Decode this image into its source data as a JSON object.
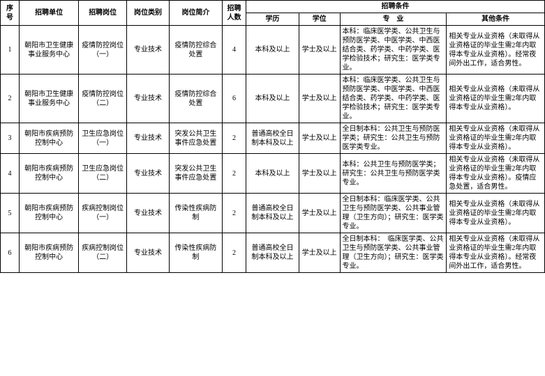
{
  "headers": {
    "seq": "序号",
    "unit": "招聘单位",
    "position": "招聘岗位",
    "category": "岗位类别",
    "intro": "岗位简介",
    "count": "招聘人数",
    "conditions": "招聘条件",
    "education": "学历",
    "degree": "学位",
    "major": "专　业",
    "other": "其他条件"
  },
  "rows": [
    {
      "seq": "1",
      "unit": "朝阳市卫生健康事业服务中心",
      "position": "疫情防控岗位（一）",
      "category": "专业技术",
      "intro": "疫情防控综合处置",
      "count": "4",
      "education": "本科及以上",
      "degree": "学士及以上",
      "major": "本科：临床医学类、公共卫生与预防医学类、中医学类、中西医结合类、药学类、中药学类、医学检验技术；研究生：医学类专业。",
      "other": "相关专业从业资格（未取得从业资格证的毕业生需2年内取得本专业从业资格）。经常夜间外出工作，适合男性。"
    },
    {
      "seq": "2",
      "unit": "朝阳市卫生健康事业服务中心",
      "position": "疫情防控岗位（二）",
      "category": "专业技术",
      "intro": "疫情防控综合处置",
      "count": "6",
      "education": "本科及以上",
      "degree": "学士及以上",
      "major": "本科：临床医学类、公共卫生与预防医学类、中医学类、中西医结合类、药学类、中药学类、医学检验技术；研究生：医学类专业。",
      "other": "相关专业从业资格（未取得从业资格证的毕业生需2年内取得本专业从业资格）。"
    },
    {
      "seq": "3",
      "unit": "朝阳市疾病预防控制中心",
      "position": "卫生应急岗位（一）",
      "category": "专业技术",
      "intro": "突发公共卫生事件应急处置",
      "count": "2",
      "education": "普通高校全日制本科及以上",
      "degree": "学士及以上",
      "major": "全日制本科：公共卫生与预防医学类；研究生：公共卫生与预防医学类专业。",
      "other": "相关专业从业资格（未取得从业资格证的毕业生需2年内取得本专业从业资格）。"
    },
    {
      "seq": "4",
      "unit": "朝阳市疾病预防控制中心",
      "position": "卫生应急岗位（二）",
      "category": "专业技术",
      "intro": "突发公共卫生事件应急处置",
      "count": "2",
      "education": "本科及以上",
      "degree": "学士及以上",
      "major": "本科：公共卫生与预防医学类；研究生：公共卫生与预防医学类专业。",
      "other": "相关专业从业资格（未取得从业资格证的毕业生需2年内取得本专业从业资格）。疫情应急处置，适合男性。"
    },
    {
      "seq": "5",
      "unit": "朝阳市疾病预防控制中心",
      "position": "疾病控制岗位（一）",
      "category": "专业技术",
      "intro": "传染性疾病防制",
      "count": "2",
      "education": "普通高校全日制本科及以上",
      "degree": "学士及以上",
      "major": "全日制本科：临床医学类、公共卫生与预防医学类、公共事业管理（卫生方向）；研究生：医学类专业。",
      "other": "相关专业从业资格（未取得从业资格证的毕业生需2年内取得本专业从业资格）。"
    },
    {
      "seq": "6",
      "unit": "朝阳市疾病预防控制中心",
      "position": "疾病控制岗位（二）",
      "category": "专业技术",
      "intro": "传染性疾病防制",
      "count": "2",
      "education": "普通高校全日制本科及以上",
      "degree": "学士及以上",
      "major": "全日制本科：　临床医学类、公共卫生与预防医学类、公共事业管理（卫生方向）；研究生：医学类专业。",
      "other": "相关专业从业资格（未取得从业资格证的毕业生需2年内取得本专业从业资格）。经常夜间外出工作，适合男性。"
    }
  ]
}
